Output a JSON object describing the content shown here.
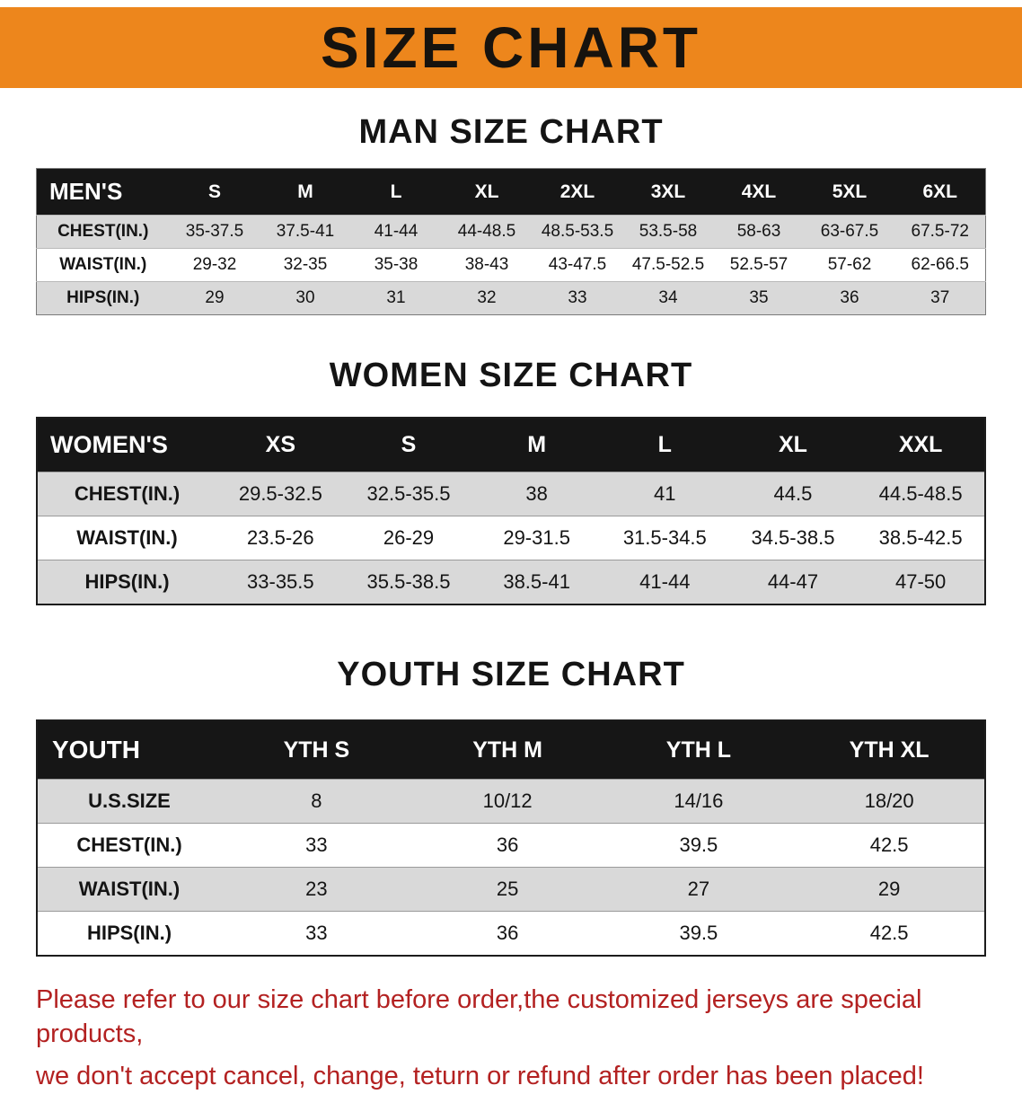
{
  "banner": {
    "title": "SIZE CHART",
    "bg_color": "#ED861C"
  },
  "sections": [
    {
      "id": "men",
      "heading": "MAN SIZE CHART",
      "table": {
        "header": [
          "MEN'S",
          "S",
          "M",
          "L",
          "XL",
          "2XL",
          "3XL",
          "4XL",
          "5XL",
          "6XL"
        ],
        "rows": [
          [
            "CHEST(IN.)",
            "35-37.5",
            "37.5-41",
            "41-44",
            "44-48.5",
            "48.5-53.5",
            "53.5-58",
            "58-63",
            "63-67.5",
            "67.5-72"
          ],
          [
            "WAIST(IN.)",
            "29-32",
            "32-35",
            "35-38",
            "38-43",
            "43-47.5",
            "47.5-52.5",
            "52.5-57",
            "57-62",
            "62-66.5"
          ],
          [
            "HIPS(IN.)",
            "29",
            "30",
            "31",
            "32",
            "33",
            "34",
            "35",
            "36",
            "37"
          ]
        ]
      }
    },
    {
      "id": "women",
      "heading": "WOMEN SIZE CHART",
      "table": {
        "header": [
          "WOMEN'S",
          "XS",
          "S",
          "M",
          "L",
          "XL",
          "XXL"
        ],
        "rows": [
          [
            "CHEST(IN.)",
            "29.5-32.5",
            "32.5-35.5",
            "38",
            "41",
            "44.5",
            "44.5-48.5"
          ],
          [
            "WAIST(IN.)",
            "23.5-26",
            "26-29",
            "29-31.5",
            "31.5-34.5",
            "34.5-38.5",
            "38.5-42.5"
          ],
          [
            "HIPS(IN.)",
            "33-35.5",
            "35.5-38.5",
            "38.5-41",
            "41-44",
            "44-47",
            "47-50"
          ]
        ]
      }
    },
    {
      "id": "youth",
      "heading": "YOUTH SIZE CHART",
      "table": {
        "header": [
          "YOUTH",
          "YTH S",
          "YTH M",
          "YTH L",
          "YTH XL"
        ],
        "rows": [
          [
            "U.S.SIZE",
            "8",
            "10/12",
            "14/16",
            "18/20"
          ],
          [
            "CHEST(IN.)",
            "33",
            "36",
            "39.5",
            "42.5"
          ],
          [
            "WAIST(IN.)",
            "23",
            "25",
            "27",
            "29"
          ],
          [
            "HIPS(IN.)",
            "33",
            "36",
            "39.5",
            "42.5"
          ]
        ]
      }
    }
  ],
  "disclaimer": {
    "line1": "Please refer to our size chart before order,the customized jerseys are special products,",
    "line2": "we don't accept cancel, change, teturn or refund after order has been placed!",
    "color": "#B32121"
  }
}
